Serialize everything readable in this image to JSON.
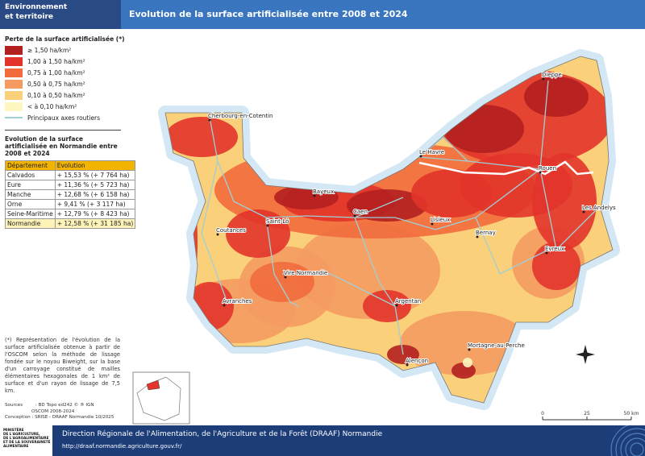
{
  "header": {
    "section": [
      "Environnement",
      "et territoire"
    ],
    "title": "Evolution de la surface artificialisée entre 2008 et 2024"
  },
  "legend": {
    "title": "Perte de la surface artificialisée (*)",
    "items": [
      {
        "label": "≥ 1,50 ha/km²",
        "color": "#b2201f"
      },
      {
        "label": "1,00 à 1,50 ha/km²",
        "color": "#e2342a"
      },
      {
        "label": "0,75 à 1,00 ha/km²",
        "color": "#f26b3c"
      },
      {
        "label": "0,50 à 0,75 ha/km²",
        "color": "#f59b62"
      },
      {
        "label": "0,10 à 0,50 ha/km²",
        "color": "#fbd07a"
      },
      {
        "label": "< à 0,10 ha/km²",
        "color": "#fdf6c0"
      }
    ],
    "road": {
      "label": "Principaux axes routiers",
      "color": "#9fcfd6"
    }
  },
  "table": {
    "title": "Evolution de la surface artificialisée en Normandie entre 2008 et 2024",
    "header": [
      "Département",
      "Evolution"
    ],
    "rows": [
      [
        "Calvados",
        "+ 15,53 % (+ 7 764 ha)"
      ],
      [
        "Eure",
        "+ 11,36 % (+ 5 723 ha)"
      ],
      [
        "Manche",
        "+ 12,68 % (+ 6 158 ha)"
      ],
      [
        "Orne",
        "+ 9,41 % (+ 3 117 ha)"
      ],
      [
        "Seine-Maritime",
        "+ 12,79 % (+ 8 423 ha)"
      ],
      [
        "Normandie",
        "+ 12,58 % (+ 31 185 ha)"
      ]
    ]
  },
  "note": "(*) Représentation de l'évolution de la surface artificialisée obtenue à partir de l'OSCOM selon la méthode de lissage fondée sur le noyau Biweight, sur la base d'un carroyage constitué de mailles élémentaires hexagonales de 1 km² de surface et d'un rayon de lissage de 7,5 km.",
  "sources": {
    "label": "Sources",
    "lines": [
      ": BD Topo ed242 © ® IGN",
      "OSCOM 2008-2024"
    ],
    "conception": "Conception : SRISE - DRAAF Normandie 10/2025"
  },
  "cities": [
    "Dieppe",
    "Cherbourg-en-Cotentin",
    "Le Havre",
    "Rouen",
    "Bayeux",
    "Caen",
    "Lisieux",
    "Les Andelys",
    "Saint-Lô",
    "Coutances",
    "Bernay",
    "Evreux",
    "Vire Normandie",
    "Avranches",
    "Argentan",
    "Mortagne-au-Perche",
    "Alençon"
  ],
  "scale": [
    "0",
    "25",
    "50 km"
  ],
  "footer": {
    "ministry": [
      "MINISTÈRE",
      "DE L'AGRICULTURE,",
      "DE L'AGROALIMENTAIRE",
      "ET DE LA SOUVERAINETÉ",
      "ALIMENTAIRE"
    ],
    "org": "Direction Régionale de l'Alimentation, de l'Agriculture et de la Forêt (DRAAF) Normandie",
    "url": "http://draaf.normandie.agriculture.gouv.fr/"
  }
}
